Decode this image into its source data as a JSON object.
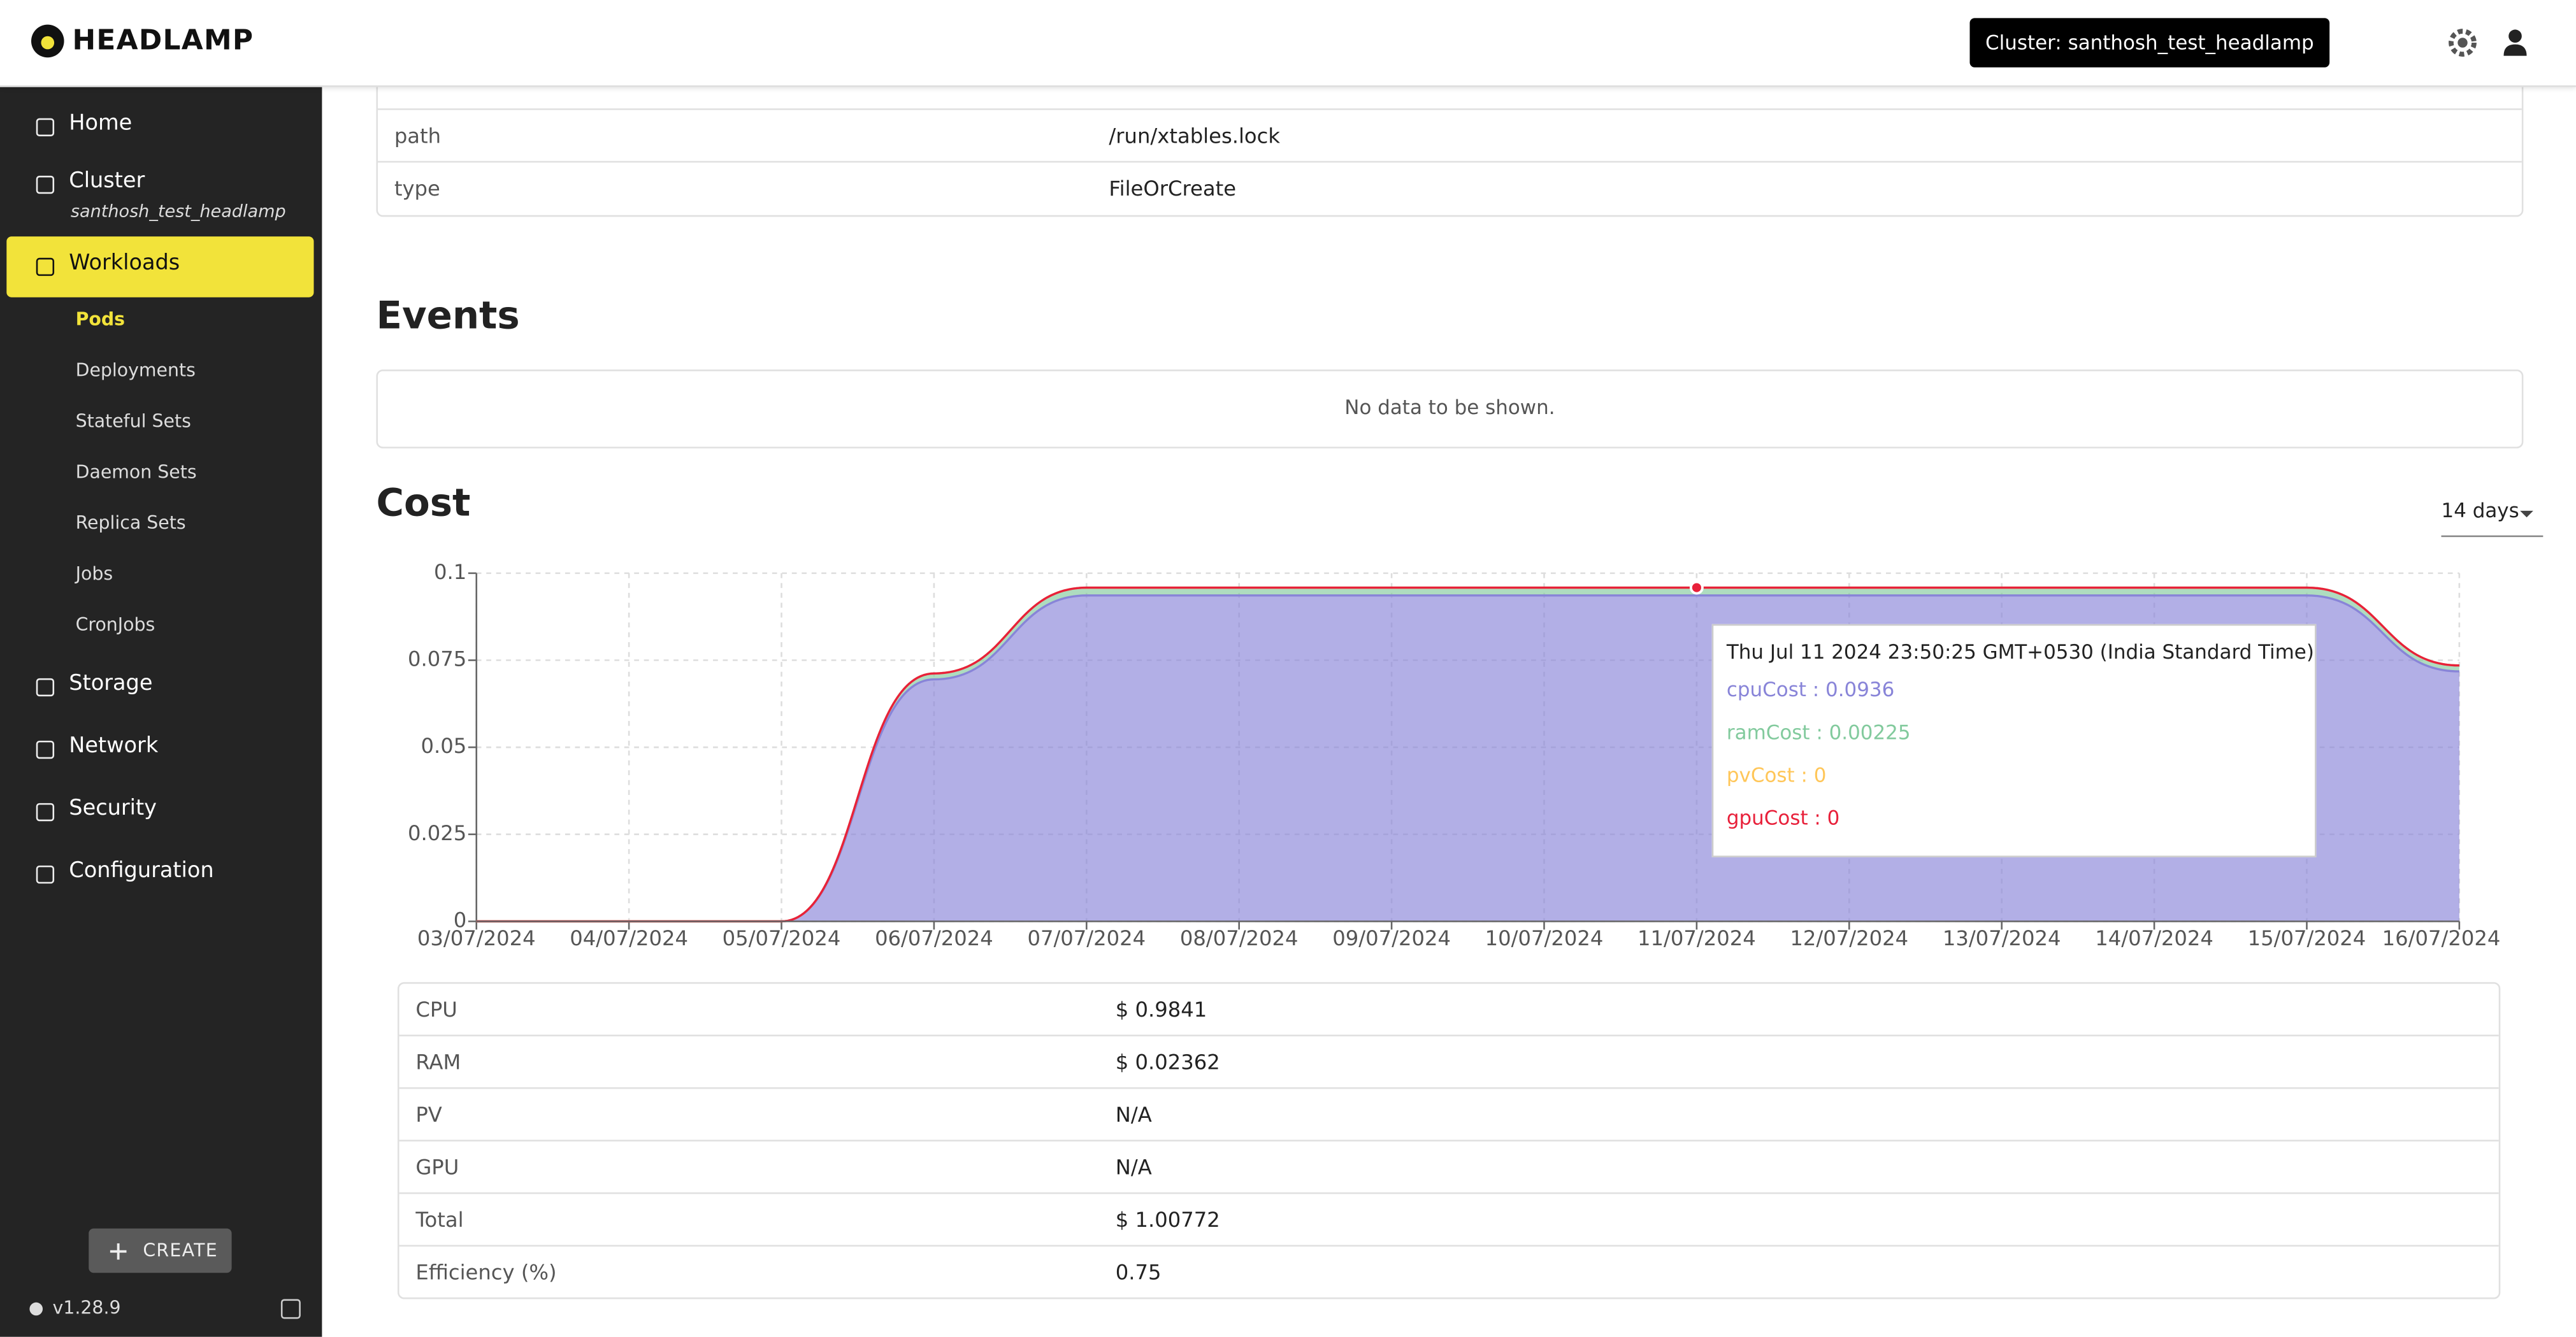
{
  "header": {
    "logo": "HEADLAMP",
    "cluster_button": "Cluster: santhosh_test_headlamp"
  },
  "sidebar": {
    "items": [
      {
        "label": "Home"
      },
      {
        "label": "Cluster",
        "sublabel": "santhosh_test_headlamp"
      },
      {
        "label": "Workloads",
        "children": [
          "Pods",
          "Deployments",
          "Stateful Sets",
          "Daemon Sets",
          "Replica Sets",
          "Jobs",
          "CronJobs"
        ]
      },
      {
        "label": "Storage"
      },
      {
        "label": "Network"
      },
      {
        "label": "Security"
      },
      {
        "label": "Configuration"
      }
    ],
    "create_button": "CREATE",
    "version": "v1.28.9"
  },
  "details_table": {
    "rows": [
      [
        "path",
        "/run/xtables.lock"
      ],
      [
        "type",
        "FileOrCreate"
      ]
    ]
  },
  "events": {
    "title": "Events",
    "empty_message": "No data to be shown."
  },
  "cost": {
    "title": "Cost",
    "range_select": "14 days",
    "chart_data": {
      "type": "area",
      "stacked": true,
      "grid": true,
      "categories": [
        "03/07/2024",
        "04/07/2024",
        "05/07/2024",
        "06/07/2024",
        "07/07/2024",
        "08/07/2024",
        "09/07/2024",
        "10/07/2024",
        "11/07/2024",
        "12/07/2024",
        "13/07/2024",
        "14/07/2024",
        "15/07/2024",
        "16/07/2024"
      ],
      "series": [
        {
          "name": "cpuCost",
          "color": "#8884d8",
          "values": [
            0,
            0,
            0,
            0.0695,
            0.0936,
            0.0936,
            0.0936,
            0.0936,
            0.0936,
            0.0936,
            0.0936,
            0.0936,
            0.0936,
            0.0718
          ]
        },
        {
          "name": "ramCost",
          "color": "#82ca9d",
          "values": [
            0,
            0,
            0,
            0.0017,
            0.00225,
            0.00225,
            0.00225,
            0.00225,
            0.00225,
            0.00225,
            0.00225,
            0.00225,
            0.00225,
            0.0017
          ]
        },
        {
          "name": "pvCost",
          "color": "#ffc658",
          "values": [
            0,
            0,
            0,
            0,
            0,
            0,
            0,
            0,
            0,
            0,
            0,
            0,
            0,
            0
          ]
        },
        {
          "name": "gpuCost",
          "color": "#e8203a",
          "values": [
            0,
            0,
            0,
            0,
            0,
            0,
            0,
            0,
            0,
            0,
            0,
            0,
            0,
            0
          ]
        }
      ],
      "ylim": [
        0,
        0.1
      ],
      "yticks": [
        0,
        0.025,
        0.05,
        0.075,
        0.1
      ]
    },
    "tooltip": {
      "title": "Thu Jul 11 2024 23:50:25 GMT+0530 (India Standard Time)",
      "items": [
        "cpuCost : 0.0936",
        "ramCost : 0.00225",
        "pvCost : 0",
        "gpuCost : 0"
      ]
    },
    "table": {
      "rows": [
        [
          "CPU",
          "$ 0.9841"
        ],
        [
          "RAM",
          "$ 0.02362"
        ],
        [
          "PV",
          "N/A"
        ],
        [
          "GPU",
          "N/A"
        ],
        [
          "Total",
          "$ 1.00772"
        ],
        [
          "Efficiency (%)",
          "0.75"
        ]
      ]
    }
  }
}
